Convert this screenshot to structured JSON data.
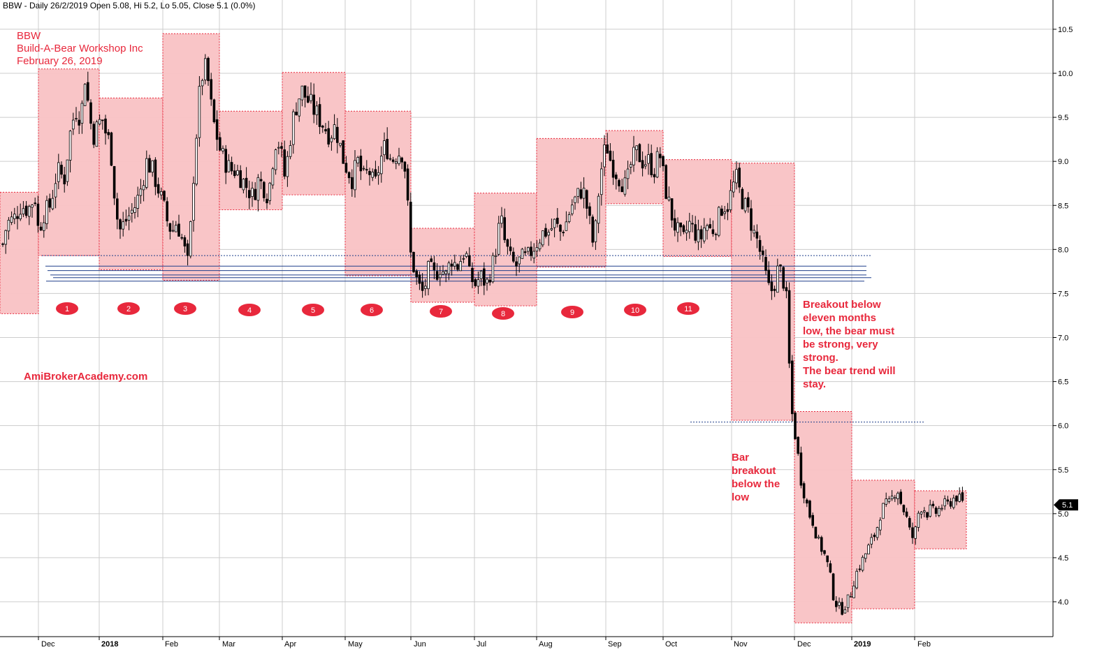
{
  "header": {
    "text": "BBW - Daily 26/2/2019 Open 5.08, Hi 5.2, Lo 5.05, Close 5.1 (0.0%)"
  },
  "title_block": {
    "line1": "BBW",
    "line2": "Build-A-Bear Workshop Inc",
    "line3": "February 26, 2019"
  },
  "watermark": "AmiBrokerAcademy.com",
  "annotations": {
    "breakout_lines": [
      "Breakout below",
      "eleven months",
      "low, the bear must",
      "be strong, very",
      "strong.",
      "The bear trend will",
      "stay."
    ],
    "bar_lines": [
      "Bar",
      "breakout",
      "below the",
      "low"
    ]
  },
  "colors": {
    "box_fill": "#f9c2c4",
    "box_border": "#e8283c",
    "text_red": "#e8283c",
    "level_line": "#1f3f8a",
    "candle": "#000000",
    "grid": "#cccccc",
    "marker": "#e8283c"
  },
  "chart_data": {
    "type": "candlestick",
    "symbol": "BBW",
    "interval": "Daily",
    "last_price_label": "5.1",
    "y_axis": {
      "range": [
        3.7,
        10.7
      ],
      "ticks": [
        "4.0",
        "4.5",
        "5.0",
        "5.5",
        "6.0",
        "6.5",
        "7.0",
        "7.5",
        "8.0",
        "8.5",
        "9.0",
        "9.5",
        "10.0",
        "10.5"
      ]
    },
    "x_axis": {
      "ticks": [
        "Dec",
        "2018",
        "Feb",
        "Mar",
        "Apr",
        "May",
        "Jun",
        "Jul",
        "Aug",
        "Sep",
        "Oct",
        "Nov",
        "Dec",
        "2019",
        "Feb"
      ],
      "bold_ticks": [
        "2018",
        "2019"
      ]
    },
    "monthly_ranges": [
      {
        "period": "Nov 2017",
        "low": 7.27,
        "high": 8.65
      },
      {
        "period": "Dec 2017",
        "low": 7.93,
        "high": 10.05
      },
      {
        "period": "Jan 2018",
        "low": 7.77,
        "high": 9.72
      },
      {
        "period": "Feb 2018",
        "low": 7.65,
        "high": 10.45
      },
      {
        "period": "Mar 2018",
        "low": 8.45,
        "high": 9.57
      },
      {
        "period": "Apr 2018",
        "low": 8.62,
        "high": 10.01
      },
      {
        "period": "May 2018",
        "low": 7.7,
        "high": 9.57
      },
      {
        "period": "Jun 2018",
        "low": 7.4,
        "high": 8.24
      },
      {
        "period": "Jul 2018",
        "low": 7.36,
        "high": 8.64
      },
      {
        "period": "Aug 2018",
        "low": 7.8,
        "high": 9.26
      },
      {
        "period": "Sep 2018",
        "low": 8.52,
        "high": 9.35
      },
      {
        "period": "Oct 2018",
        "low": 7.92,
        "high": 9.02
      },
      {
        "period": "Nov 2018",
        "low": 6.06,
        "high": 8.98
      },
      {
        "period": "Dec 2018",
        "low": 3.76,
        "high": 6.16
      },
      {
        "period": "Jan 2019",
        "low": 3.92,
        "high": 5.38
      },
      {
        "period": "Feb 2019",
        "low": 4.6,
        "high": 5.26
      }
    ],
    "monthly_markers": [
      "1",
      "2",
      "3",
      "4",
      "5",
      "6",
      "7",
      "8",
      "9",
      "10",
      "11"
    ],
    "support_levels": [
      7.93,
      7.81,
      7.76,
      7.71,
      7.68,
      7.64
    ],
    "breakdown_level": 6.04,
    "price_path": [
      [
        0,
        7.9
      ],
      [
        10,
        8.3
      ],
      [
        20,
        8.35
      ],
      [
        30,
        8.5
      ],
      [
        40,
        8.45
      ],
      [
        50,
        8.6
      ],
      [
        55,
        8.2
      ],
      [
        62,
        8.4
      ],
      [
        72,
        8.5
      ],
      [
        82,
        8.9
      ],
      [
        92,
        8.8
      ],
      [
        100,
        9.3
      ],
      [
        108,
        9.6
      ],
      [
        116,
        9.5
      ],
      [
        122,
        10.0
      ],
      [
        128,
        9.5
      ],
      [
        134,
        9.3
      ],
      [
        140,
        9.4
      ],
      [
        146,
        9.5
      ],
      [
        152,
        9.3
      ],
      [
        158,
        9.2
      ],
      [
        163,
        8.7
      ],
      [
        170,
        8.2
      ],
      [
        178,
        8.3
      ],
      [
        186,
        8.4
      ],
      [
        194,
        8.5
      ],
      [
        202,
        8.7
      ],
      [
        210,
        9.0
      ],
      [
        218,
        8.9
      ],
      [
        226,
        8.7
      ],
      [
        234,
        8.5
      ],
      [
        240,
        8.3
      ],
      [
        246,
        8.2
      ],
      [
        252,
        8.3
      ],
      [
        258,
        8.2
      ],
      [
        264,
        8.0
      ],
      [
        270,
        7.8
      ],
      [
        275,
        8.6
      ],
      [
        280,
        9.2
      ],
      [
        286,
        9.8
      ],
      [
        292,
        10.1
      ],
      [
        298,
        9.9
      ],
      [
        304,
        9.5
      ],
      [
        310,
        9.3
      ],
      [
        316,
        9.1
      ],
      [
        322,
        9.0
      ],
      [
        330,
        8.9
      ],
      [
        338,
        8.9
      ],
      [
        346,
        8.8
      ],
      [
        354,
        8.7
      ],
      [
        362,
        8.6
      ],
      [
        370,
        8.8
      ],
      [
        378,
        8.7
      ],
      [
        384,
        8.6
      ],
      [
        390,
        9.0
      ],
      [
        396,
        9.3
      ],
      [
        402,
        9.1
      ],
      [
        408,
        8.8
      ],
      [
        414,
        9.2
      ],
      [
        420,
        9.5
      ],
      [
        426,
        9.7
      ],
      [
        432,
        9.8
      ],
      [
        440,
        9.7
      ],
      [
        448,
        9.6
      ],
      [
        456,
        9.5
      ],
      [
        464,
        9.4
      ],
      [
        472,
        9.3
      ],
      [
        480,
        9.4
      ],
      [
        486,
        9.2
      ],
      [
        492,
        9.0
      ],
      [
        498,
        8.9
      ],
      [
        504,
        8.8
      ],
      [
        512,
        9.0
      ],
      [
        520,
        8.8
      ],
      [
        528,
        8.9
      ],
      [
        536,
        8.7
      ],
      [
        544,
        9.0
      ],
      [
        552,
        9.2
      ],
      [
        560,
        9.0
      ],
      [
        568,
        9.1
      ],
      [
        576,
        9.1
      ],
      [
        582,
        8.8
      ],
      [
        586,
        8.0
      ],
      [
        592,
        7.8
      ],
      [
        598,
        7.6
      ],
      [
        606,
        7.5
      ],
      [
        614,
        7.8
      ],
      [
        622,
        7.7
      ],
      [
        630,
        7.8
      ],
      [
        638,
        7.7
      ],
      [
        646,
        7.9
      ],
      [
        654,
        7.8
      ],
      [
        660,
        7.9
      ],
      [
        666,
        8.0
      ],
      [
        672,
        7.7
      ],
      [
        680,
        7.6
      ],
      [
        688,
        7.7
      ],
      [
        696,
        7.6
      ],
      [
        704,
        7.8
      ],
      [
        712,
        8.1
      ],
      [
        716,
        8.4
      ],
      [
        722,
        8.1
      ],
      [
        730,
        7.9
      ],
      [
        738,
        7.8
      ],
      [
        746,
        7.9
      ],
      [
        754,
        7.9
      ],
      [
        762,
        8.0
      ],
      [
        770,
        8.1
      ],
      [
        778,
        8.2
      ],
      [
        786,
        8.2
      ],
      [
        794,
        8.3
      ],
      [
        802,
        8.2
      ],
      [
        810,
        8.3
      ],
      [
        818,
        8.5
      ],
      [
        826,
        8.6
      ],
      [
        834,
        8.7
      ],
      [
        842,
        8.4
      ],
      [
        850,
        8.0
      ],
      [
        856,
        8.6
      ],
      [
        862,
        9.0
      ],
      [
        868,
        9.2
      ],
      [
        874,
        9.0
      ],
      [
        880,
        8.9
      ],
      [
        888,
        8.8
      ],
      [
        896,
        8.7
      ],
      [
        904,
        9.0
      ],
      [
        912,
        9.1
      ],
      [
        920,
        9.0
      ],
      [
        928,
        9.0
      ],
      [
        936,
        8.9
      ],
      [
        944,
        9.1
      ],
      [
        952,
        8.7
      ],
      [
        958,
        8.5
      ],
      [
        964,
        8.3
      ],
      [
        970,
        8.2
      ],
      [
        978,
        8.1
      ],
      [
        986,
        8.3
      ],
      [
        994,
        8.2
      ],
      [
        1002,
        8.1
      ],
      [
        1010,
        8.3
      ],
      [
        1018,
        8.2
      ],
      [
        1026,
        8.3
      ],
      [
        1034,
        8.5
      ],
      [
        1042,
        8.5
      ],
      [
        1048,
        8.7
      ],
      [
        1054,
        8.8
      ],
      [
        1060,
        8.6
      ],
      [
        1066,
        8.5
      ],
      [
        1072,
        8.4
      ],
      [
        1078,
        8.2
      ],
      [
        1084,
        8.1
      ],
      [
        1090,
        7.9
      ],
      [
        1096,
        7.7
      ],
      [
        1102,
        7.5
      ],
      [
        1108,
        7.6
      ],
      [
        1114,
        7.8
      ],
      [
        1120,
        7.7
      ],
      [
        1126,
        7.4
      ],
      [
        1130,
        6.6
      ],
      [
        1134,
        6.1
      ],
      [
        1140,
        5.8
      ],
      [
        1146,
        5.4
      ],
      [
        1152,
        5.2
      ],
      [
        1158,
        5.0
      ],
      [
        1164,
        4.9
      ],
      [
        1170,
        4.7
      ],
      [
        1176,
        4.6
      ],
      [
        1182,
        4.5
      ],
      [
        1188,
        4.3
      ],
      [
        1194,
        4.0
      ],
      [
        1200,
        3.95
      ],
      [
        1206,
        3.9
      ],
      [
        1212,
        4.0
      ],
      [
        1218,
        4.1
      ],
      [
        1224,
        4.3
      ],
      [
        1230,
        4.4
      ],
      [
        1236,
        4.5
      ],
      [
        1242,
        4.6
      ],
      [
        1248,
        4.7
      ],
      [
        1254,
        4.8
      ],
      [
        1260,
        5.0
      ],
      [
        1266,
        5.1
      ],
      [
        1272,
        5.1
      ],
      [
        1278,
        5.2
      ],
      [
        1284,
        5.3
      ],
      [
        1290,
        5.1
      ],
      [
        1296,
        5.0
      ],
      [
        1302,
        4.8
      ],
      [
        1308,
        4.7
      ],
      [
        1314,
        5.0
      ],
      [
        1320,
        5.1
      ],
      [
        1326,
        5.0
      ],
      [
        1332,
        5.05
      ],
      [
        1338,
        5.0
      ],
      [
        1344,
        5.05
      ],
      [
        1350,
        5.1
      ],
      [
        1356,
        5.1
      ],
      [
        1362,
        5.15
      ],
      [
        1368,
        5.2
      ],
      [
        1374,
        5.15
      ],
      [
        1380,
        5.1
      ]
    ]
  }
}
